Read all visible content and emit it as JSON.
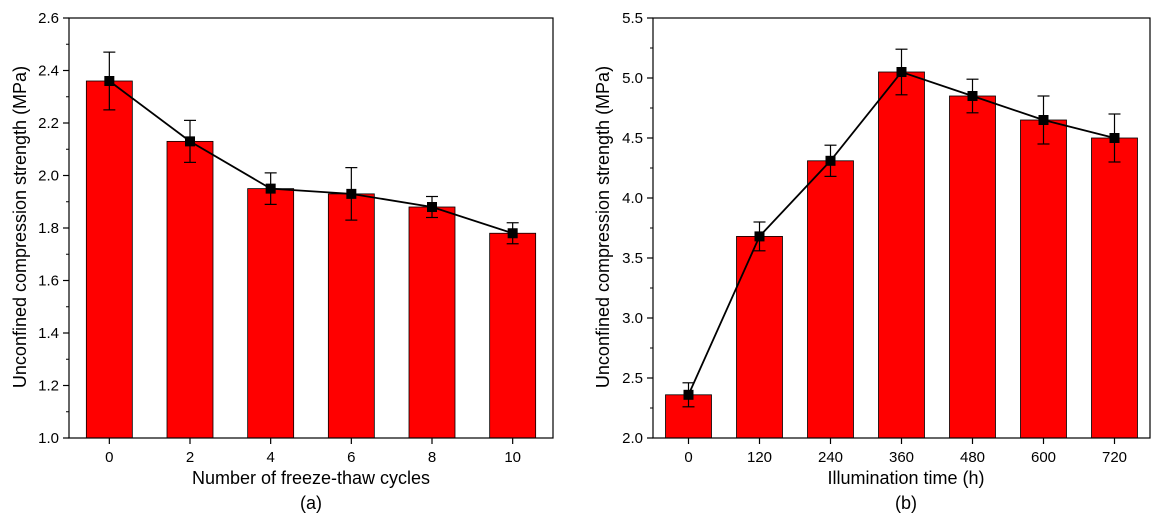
{
  "colors": {
    "bar": "#ff0000",
    "bar_edge": "#000000",
    "line": "#000000",
    "marker": "#000000"
  },
  "chart_data": [
    {
      "type": "bar",
      "panel_label": "(a)",
      "categories": [
        "0",
        "2",
        "4",
        "6",
        "8",
        "10"
      ],
      "values": [
        2.36,
        2.13,
        1.95,
        1.93,
        1.88,
        1.78
      ],
      "errors": [
        0.11,
        0.08,
        0.06,
        0.1,
        0.04,
        0.04
      ],
      "overlay": "line-with-square-markers",
      "xlabel": "Number of freeze-thaw cycles",
      "ylabel": "Unconfined compression strength (MPa)",
      "ylim": [
        1.0,
        2.6
      ],
      "yticks": [
        "1.0",
        "1.2",
        "1.4",
        "1.6",
        "1.8",
        "2.0",
        "2.2",
        "2.4",
        "2.6"
      ],
      "grid": false
    },
    {
      "type": "bar",
      "panel_label": "(b)",
      "categories": [
        "0",
        "120",
        "240",
        "360",
        "480",
        "600",
        "720"
      ],
      "values": [
        2.36,
        3.68,
        4.31,
        5.05,
        4.85,
        4.65,
        4.5
      ],
      "errors": [
        0.1,
        0.12,
        0.13,
        0.19,
        0.14,
        0.2,
        0.2
      ],
      "overlay": "line-with-square-markers",
      "xlabel": "Illumination time (h)",
      "ylabel": "Unconfined compression strength (MPa)",
      "ylim": [
        2.0,
        5.5
      ],
      "yticks": [
        "2.0",
        "2.5",
        "3.0",
        "3.5",
        "4.0",
        "4.5",
        "5.0",
        "5.5"
      ],
      "grid": false
    }
  ]
}
